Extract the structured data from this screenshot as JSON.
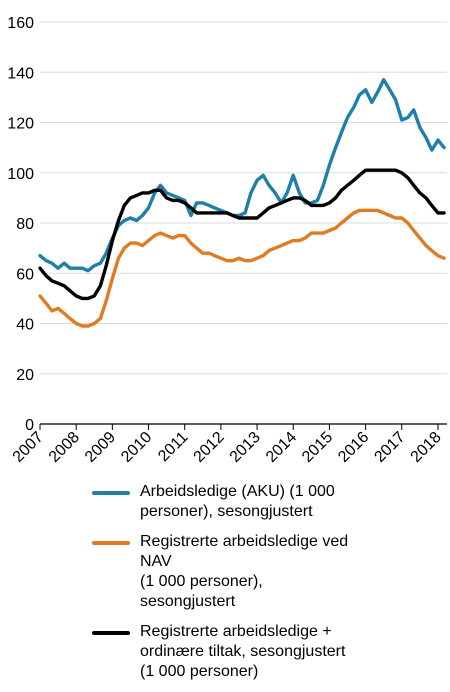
{
  "chart_data": {
    "type": "line",
    "title": "",
    "xlabel": "",
    "ylabel": "",
    "xlim": [
      2007,
      2018.25
    ],
    "ylim": [
      0,
      160
    ],
    "yticks": [
      "0",
      "20",
      "40",
      "60",
      "80",
      "100",
      "120",
      "140",
      "160"
    ],
    "xticks": [
      "2007",
      "2008",
      "2009",
      "2010",
      "2011",
      "2012",
      "2013",
      "2014",
      "2015",
      "2016",
      "2017",
      "2018"
    ],
    "grid": "horizontal",
    "legend_position": "bottom",
    "series": [
      {
        "name": "Arbeidsledige (AKU) (1 000 personer), sesongjustert",
        "legend_lines": [
          "Arbeidsledige (AKU) (1 000",
          "personer), sesongjustert"
        ],
        "color": "#1f7fa8",
        "points": [
          [
            2007.0,
            67
          ],
          [
            2007.17,
            65
          ],
          [
            2007.33,
            64
          ],
          [
            2007.5,
            62
          ],
          [
            2007.67,
            64
          ],
          [
            2007.83,
            62
          ],
          [
            2008.0,
            62
          ],
          [
            2008.17,
            62
          ],
          [
            2008.33,
            61
          ],
          [
            2008.5,
            63
          ],
          [
            2008.67,
            64
          ],
          [
            2008.83,
            68
          ],
          [
            2009.0,
            74
          ],
          [
            2009.17,
            79
          ],
          [
            2009.33,
            81
          ],
          [
            2009.5,
            82
          ],
          [
            2009.67,
            81
          ],
          [
            2009.83,
            83
          ],
          [
            2010.0,
            86
          ],
          [
            2010.17,
            92
          ],
          [
            2010.33,
            95
          ],
          [
            2010.5,
            92
          ],
          [
            2010.67,
            91
          ],
          [
            2010.83,
            90
          ],
          [
            2011.0,
            89
          ],
          [
            2011.17,
            83
          ],
          [
            2011.33,
            88
          ],
          [
            2011.5,
            88
          ],
          [
            2011.67,
            87
          ],
          [
            2011.83,
            86
          ],
          [
            2012.0,
            85
          ],
          [
            2012.17,
            84
          ],
          [
            2012.33,
            83
          ],
          [
            2012.5,
            83
          ],
          [
            2012.67,
            84
          ],
          [
            2012.83,
            92
          ],
          [
            2013.0,
            97
          ],
          [
            2013.17,
            99
          ],
          [
            2013.33,
            95
          ],
          [
            2013.5,
            92
          ],
          [
            2013.67,
            88
          ],
          [
            2013.83,
            92
          ],
          [
            2014.0,
            99
          ],
          [
            2014.17,
            92
          ],
          [
            2014.33,
            88
          ],
          [
            2014.5,
            88
          ],
          [
            2014.67,
            89
          ],
          [
            2014.83,
            95
          ],
          [
            2015.0,
            103
          ],
          [
            2015.17,
            110
          ],
          [
            2015.33,
            116
          ],
          [
            2015.5,
            122
          ],
          [
            2015.67,
            126
          ],
          [
            2015.83,
            131
          ],
          [
            2016.0,
            133
          ],
          [
            2016.17,
            128
          ],
          [
            2016.33,
            132
          ],
          [
            2016.5,
            137
          ],
          [
            2016.67,
            133
          ],
          [
            2016.83,
            129
          ],
          [
            2017.0,
            121
          ],
          [
            2017.17,
            122
          ],
          [
            2017.33,
            125
          ],
          [
            2017.5,
            118
          ],
          [
            2017.67,
            114
          ],
          [
            2017.83,
            109
          ],
          [
            2018.0,
            113
          ],
          [
            2018.17,
            110
          ]
        ]
      },
      {
        "name": "Registrerte arbeidsledige ved NAV (1 000 personer), sesongjustert",
        "legend_lines": [
          "Registrerte arbeidsledige ved",
          "NAV",
          "(1 000 personer),",
          "sesongjustert"
        ],
        "color": "#e07b21",
        "points": [
          [
            2007.0,
            51
          ],
          [
            2007.17,
            48
          ],
          [
            2007.33,
            45
          ],
          [
            2007.5,
            46
          ],
          [
            2007.67,
            44
          ],
          [
            2007.83,
            42
          ],
          [
            2008.0,
            40
          ],
          [
            2008.17,
            39
          ],
          [
            2008.33,
            39
          ],
          [
            2008.5,
            40
          ],
          [
            2008.67,
            42
          ],
          [
            2008.83,
            49
          ],
          [
            2009.0,
            58
          ],
          [
            2009.17,
            66
          ],
          [
            2009.33,
            70
          ],
          [
            2009.5,
            72
          ],
          [
            2009.67,
            72
          ],
          [
            2009.83,
            71
          ],
          [
            2010.0,
            73
          ],
          [
            2010.17,
            75
          ],
          [
            2010.33,
            76
          ],
          [
            2010.5,
            75
          ],
          [
            2010.67,
            74
          ],
          [
            2010.83,
            75
          ],
          [
            2011.0,
            75
          ],
          [
            2011.17,
            72
          ],
          [
            2011.33,
            70
          ],
          [
            2011.5,
            68
          ],
          [
            2011.67,
            68
          ],
          [
            2011.83,
            67
          ],
          [
            2012.0,
            66
          ],
          [
            2012.17,
            65
          ],
          [
            2012.33,
            65
          ],
          [
            2012.5,
            66
          ],
          [
            2012.67,
            65
          ],
          [
            2012.83,
            65
          ],
          [
            2013.0,
            66
          ],
          [
            2013.17,
            67
          ],
          [
            2013.33,
            69
          ],
          [
            2013.5,
            70
          ],
          [
            2013.67,
            71
          ],
          [
            2013.83,
            72
          ],
          [
            2014.0,
            73
          ],
          [
            2014.17,
            73
          ],
          [
            2014.33,
            74
          ],
          [
            2014.5,
            76
          ],
          [
            2014.67,
            76
          ],
          [
            2014.83,
            76
          ],
          [
            2015.0,
            77
          ],
          [
            2015.17,
            78
          ],
          [
            2015.33,
            80
          ],
          [
            2015.5,
            82
          ],
          [
            2015.67,
            84
          ],
          [
            2015.83,
            85
          ],
          [
            2016.0,
            85
          ],
          [
            2016.17,
            85
          ],
          [
            2016.33,
            85
          ],
          [
            2016.5,
            84
          ],
          [
            2016.67,
            83
          ],
          [
            2016.83,
            82
          ],
          [
            2017.0,
            82
          ],
          [
            2017.17,
            80
          ],
          [
            2017.33,
            77
          ],
          [
            2017.5,
            74
          ],
          [
            2017.67,
            71
          ],
          [
            2017.83,
            69
          ],
          [
            2018.0,
            67
          ],
          [
            2018.17,
            66
          ]
        ]
      },
      {
        "name": "Registrerte arbeidsledige + ordinære tiltak, sesongjustert (1 000 personer)",
        "legend_lines": [
          "Registrerte arbeidsledige +",
          "ordinære tiltak, sesongjustert",
          "(1 000 personer)"
        ],
        "color": "#000000",
        "points": [
          [
            2007.0,
            62
          ],
          [
            2007.17,
            59
          ],
          [
            2007.33,
            57
          ],
          [
            2007.5,
            56
          ],
          [
            2007.67,
            55
          ],
          [
            2007.83,
            53
          ],
          [
            2008.0,
            51
          ],
          [
            2008.17,
            50
          ],
          [
            2008.33,
            50
          ],
          [
            2008.5,
            51
          ],
          [
            2008.67,
            55
          ],
          [
            2008.83,
            63
          ],
          [
            2009.0,
            73
          ],
          [
            2009.17,
            81
          ],
          [
            2009.33,
            87
          ],
          [
            2009.5,
            90
          ],
          [
            2009.67,
            91
          ],
          [
            2009.83,
            92
          ],
          [
            2010.0,
            92
          ],
          [
            2010.17,
            93
          ],
          [
            2010.33,
            93
          ],
          [
            2010.5,
            90
          ],
          [
            2010.67,
            89
          ],
          [
            2010.83,
            89
          ],
          [
            2011.0,
            88
          ],
          [
            2011.17,
            86
          ],
          [
            2011.33,
            84
          ],
          [
            2011.5,
            84
          ],
          [
            2011.67,
            84
          ],
          [
            2011.83,
            84
          ],
          [
            2012.0,
            84
          ],
          [
            2012.17,
            84
          ],
          [
            2012.33,
            83
          ],
          [
            2012.5,
            82
          ],
          [
            2012.67,
            82
          ],
          [
            2012.83,
            82
          ],
          [
            2013.0,
            82
          ],
          [
            2013.17,
            84
          ],
          [
            2013.33,
            86
          ],
          [
            2013.5,
            87
          ],
          [
            2013.67,
            88
          ],
          [
            2013.83,
            89
          ],
          [
            2014.0,
            90
          ],
          [
            2014.17,
            90
          ],
          [
            2014.33,
            89
          ],
          [
            2014.5,
            87
          ],
          [
            2014.67,
            87
          ],
          [
            2014.83,
            87
          ],
          [
            2015.0,
            88
          ],
          [
            2015.17,
            90
          ],
          [
            2015.33,
            93
          ],
          [
            2015.5,
            95
          ],
          [
            2015.67,
            97
          ],
          [
            2015.83,
            99
          ],
          [
            2016.0,
            101
          ],
          [
            2016.17,
            101
          ],
          [
            2016.33,
            101
          ],
          [
            2016.5,
            101
          ],
          [
            2016.67,
            101
          ],
          [
            2016.83,
            101
          ],
          [
            2017.0,
            100
          ],
          [
            2017.17,
            98
          ],
          [
            2017.33,
            95
          ],
          [
            2017.5,
            92
          ],
          [
            2017.67,
            90
          ],
          [
            2017.83,
            87
          ],
          [
            2018.0,
            84
          ],
          [
            2018.17,
            84
          ]
        ]
      }
    ]
  }
}
